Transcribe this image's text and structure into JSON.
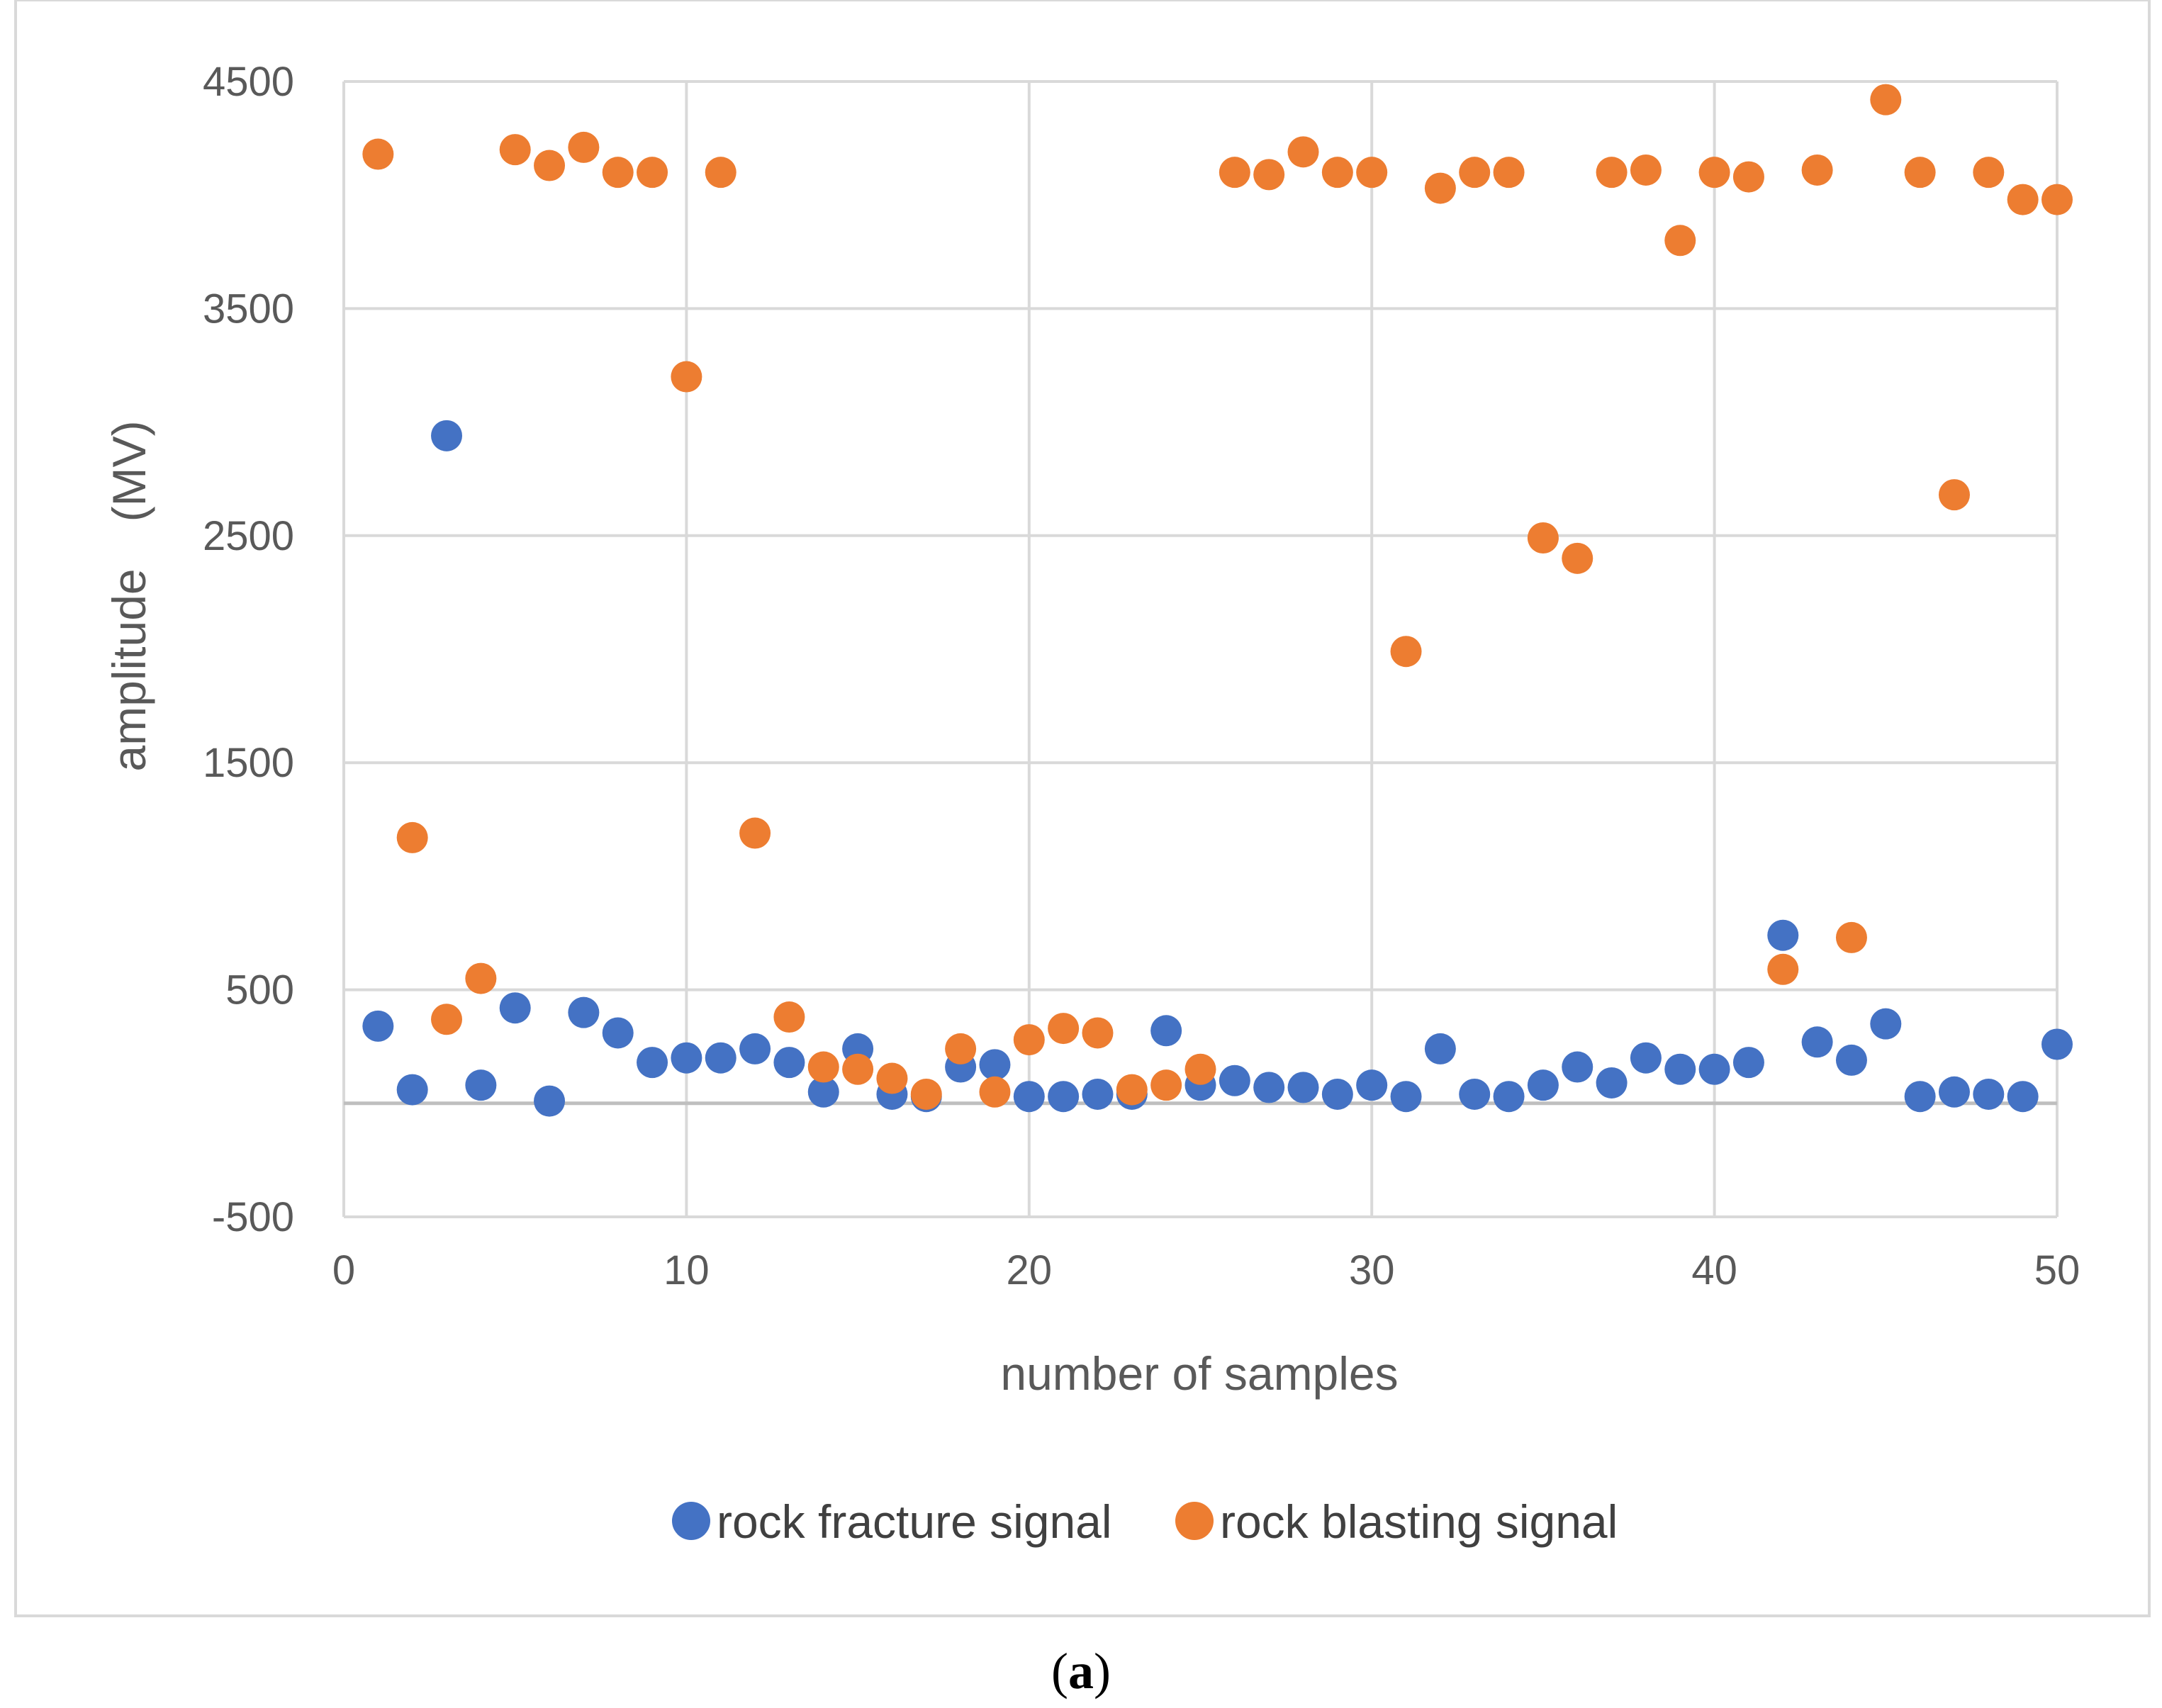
{
  "chart_data": {
    "type": "scatter",
    "title": "",
    "xlabel": "number of samples",
    "ylabel": "amplitude　(MV)",
    "xlim": [
      0,
      50
    ],
    "ylim": [
      -500,
      4500
    ],
    "x_ticks": [
      0,
      10,
      20,
      30,
      40,
      50
    ],
    "y_ticks": [
      -500,
      500,
      1500,
      2500,
      3500,
      4500
    ],
    "grid": true,
    "legend_position": "bottom",
    "colors": {
      "rock_fracture": "#4472c4",
      "rock_blasting": "#ed7d31",
      "grid": "#d9d9d9",
      "zero_line": "#bfbfbf",
      "frame": "#d9d9d9"
    },
    "series": [
      {
        "name": "rock fracture signal",
        "x": [
          1,
          2,
          3,
          4,
          5,
          6,
          7,
          8,
          9,
          10,
          11,
          12,
          13,
          14,
          15,
          16,
          17,
          18,
          19,
          20,
          21,
          22,
          23,
          24,
          25,
          26,
          27,
          28,
          29,
          30,
          31,
          32,
          33,
          34,
          35,
          36,
          37,
          38,
          39,
          40,
          41,
          42,
          43,
          44,
          45,
          46,
          47,
          48,
          49,
          50
        ],
        "values": [
          340,
          60,
          2940,
          80,
          420,
          10,
          400,
          310,
          180,
          200,
          200,
          240,
          180,
          50,
          240,
          40,
          30,
          160,
          170,
          30,
          30,
          40,
          40,
          320,
          80,
          100,
          70,
          70,
          40,
          80,
          30,
          240,
          40,
          30,
          80,
          160,
          90,
          200,
          150,
          150,
          180,
          740,
          270,
          190,
          350,
          30,
          50,
          40,
          30,
          260
        ]
      },
      {
        "name": "rock blasting signal",
        "x": [
          1,
          2,
          3,
          4,
          5,
          6,
          7,
          8,
          9,
          10,
          11,
          12,
          13,
          14,
          15,
          16,
          17,
          18,
          19,
          20,
          21,
          22,
          23,
          24,
          25,
          26,
          27,
          28,
          29,
          30,
          31,
          32,
          33,
          34,
          35,
          36,
          37,
          38,
          39,
          40,
          41,
          42,
          43,
          44,
          45,
          46,
          47,
          48,
          49,
          50
        ],
        "values": [
          4180,
          1170,
          370,
          550,
          4200,
          4130,
          4210,
          4100,
          4100,
          3200,
          4100,
          1190,
          380,
          160,
          150,
          110,
          40,
          240,
          50,
          280,
          330,
          310,
          60,
          80,
          150,
          4100,
          4090,
          4190,
          4100,
          4100,
          1990,
          4030,
          4100,
          4100,
          2490,
          2400,
          4100,
          4110,
          3800,
          4100,
          4080,
          590,
          4110,
          730,
          4420,
          4100,
          2680,
          4100,
          3980,
          3980
        ]
      }
    ]
  },
  "caption": {
    "open": "(",
    "letter": "a",
    "close": ")"
  }
}
